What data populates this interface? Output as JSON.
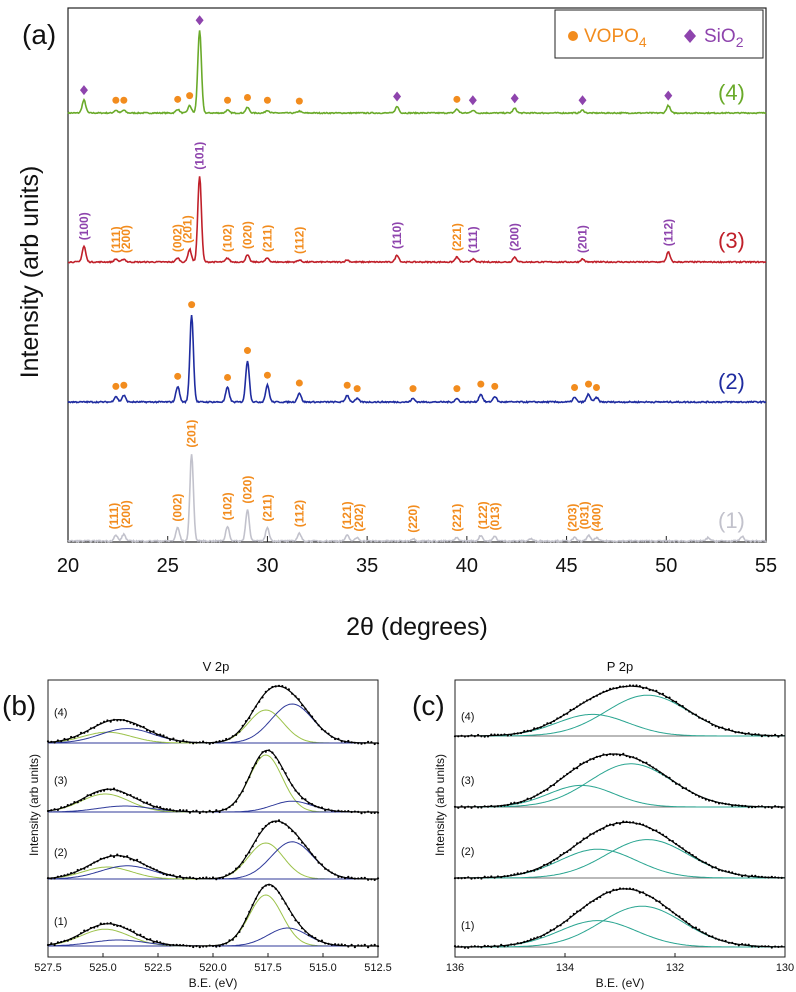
{
  "chart_data": [
    {
      "id": "a",
      "type": "line",
      "panel_label": "(a)",
      "xlabel": "2θ (degrees)",
      "ylabel": "Intensity (arb units)",
      "xlim": [
        20,
        55
      ],
      "xticks": [
        20,
        25,
        30,
        35,
        40,
        45,
        50,
        55
      ],
      "legend": [
        {
          "label": "VOPO",
          "sub": "4",
          "marker": "circle",
          "color": "#f28c1e"
        },
        {
          "label": "SiO",
          "sub": "2",
          "marker": "diamond",
          "color": "#8e44ad"
        }
      ],
      "series": [
        {
          "name": "(4)",
          "color": "#6aaa2a",
          "baseline_level": 0.0,
          "peaks": [
            [
              20.8,
              0.14
            ],
            [
              22.4,
              0.03
            ],
            [
              22.8,
              0.03
            ],
            [
              25.5,
              0.04
            ],
            [
              26.1,
              0.08
            ],
            [
              26.6,
              0.9
            ],
            [
              28.0,
              0.03
            ],
            [
              29.0,
              0.06
            ],
            [
              30.0,
              0.03
            ],
            [
              31.6,
              0.02
            ],
            [
              36.5,
              0.07
            ],
            [
              39.5,
              0.04
            ],
            [
              40.3,
              0.03
            ],
            [
              42.4,
              0.05
            ],
            [
              45.8,
              0.03
            ],
            [
              50.1,
              0.08
            ]
          ],
          "markers": [
            {
              "x": 20.8,
              "kind": "diamond"
            },
            {
              "x": 22.4,
              "kind": "circle"
            },
            {
              "x": 22.8,
              "kind": "circle"
            },
            {
              "x": 25.5,
              "kind": "circle"
            },
            {
              "x": 26.1,
              "kind": "circle"
            },
            {
              "x": 26.6,
              "kind": "diamond"
            },
            {
              "x": 28.0,
              "kind": "circle"
            },
            {
              "x": 29.0,
              "kind": "circle"
            },
            {
              "x": 30.0,
              "kind": "circle"
            },
            {
              "x": 31.6,
              "kind": "circle"
            },
            {
              "x": 36.5,
              "kind": "diamond"
            },
            {
              "x": 39.5,
              "kind": "circle"
            },
            {
              "x": 40.3,
              "kind": "diamond"
            },
            {
              "x": 42.4,
              "kind": "diamond"
            },
            {
              "x": 45.8,
              "kind": "diamond"
            },
            {
              "x": 50.1,
              "kind": "diamond"
            }
          ],
          "hkl": []
        },
        {
          "name": "(3)",
          "color": "#c0202a",
          "baseline_level": 0.0,
          "peaks": [
            [
              20.8,
              0.16
            ],
            [
              22.4,
              0.03
            ],
            [
              22.8,
              0.03
            ],
            [
              25.5,
              0.04
            ],
            [
              26.1,
              0.13
            ],
            [
              26.6,
              0.88
            ],
            [
              28.0,
              0.04
            ],
            [
              29.0,
              0.07
            ],
            [
              30.0,
              0.04
            ],
            [
              31.6,
              0.02
            ],
            [
              34.0,
              0.02
            ],
            [
              36.5,
              0.07
            ],
            [
              39.5,
              0.05
            ],
            [
              40.3,
              0.03
            ],
            [
              42.4,
              0.05
            ],
            [
              45.8,
              0.03
            ],
            [
              50.1,
              0.1
            ]
          ],
          "markers": [],
          "hkl": [
            {
              "x": 20.8,
              "text": "(100)",
              "color": "#8e44ad"
            },
            {
              "x": 22.4,
              "text": "(111)",
              "color": "#f28c1e"
            },
            {
              "x": 22.9,
              "text": "(200)",
              "color": "#f28c1e"
            },
            {
              "x": 25.5,
              "text": "(002)",
              "color": "#f28c1e"
            },
            {
              "x": 26.0,
              "text": "(201)",
              "color": "#f28c1e"
            },
            {
              "x": 26.6,
              "text": "(101)",
              "color": "#8e44ad"
            },
            {
              "x": 28.0,
              "text": "(102)",
              "color": "#f28c1e"
            },
            {
              "x": 29.0,
              "text": "(020)",
              "color": "#f28c1e"
            },
            {
              "x": 30.0,
              "text": "(211)",
              "color": "#f28c1e"
            },
            {
              "x": 31.6,
              "text": "(112)",
              "color": "#f28c1e"
            },
            {
              "x": 36.5,
              "text": "(110)",
              "color": "#8e44ad"
            },
            {
              "x": 39.5,
              "text": "(221)",
              "color": "#f28c1e"
            },
            {
              "x": 40.3,
              "text": "(111)",
              "color": "#8e44ad"
            },
            {
              "x": 42.4,
              "text": "(200)",
              "color": "#8e44ad"
            },
            {
              "x": 45.8,
              "text": "(201)",
              "color": "#8e44ad"
            },
            {
              "x": 50.1,
              "text": "(112)",
              "color": "#8e44ad"
            }
          ]
        },
        {
          "name": "(2)",
          "color": "#1f2ca0",
          "baseline_level": 0.0,
          "peaks": [
            [
              22.4,
              0.05
            ],
            [
              22.8,
              0.06
            ],
            [
              25.5,
              0.14
            ],
            [
              26.2,
              0.78
            ],
            [
              28.0,
              0.13
            ],
            [
              29.0,
              0.37
            ],
            [
              30.0,
              0.15
            ],
            [
              31.6,
              0.08
            ],
            [
              34.0,
              0.06
            ],
            [
              34.5,
              0.03
            ],
            [
              37.3,
              0.03
            ],
            [
              39.5,
              0.03
            ],
            [
              40.7,
              0.07
            ],
            [
              41.4,
              0.05
            ],
            [
              45.4,
              0.04
            ],
            [
              46.1,
              0.07
            ],
            [
              46.5,
              0.04
            ]
          ],
          "markers": [
            {
              "x": 22.4,
              "kind": "circle"
            },
            {
              "x": 22.8,
              "kind": "circle"
            },
            {
              "x": 25.5,
              "kind": "circle"
            },
            {
              "x": 26.2,
              "kind": "circle"
            },
            {
              "x": 28.0,
              "kind": "circle"
            },
            {
              "x": 29.0,
              "kind": "circle"
            },
            {
              "x": 30.0,
              "kind": "circle"
            },
            {
              "x": 31.6,
              "kind": "circle"
            },
            {
              "x": 34.0,
              "kind": "circle"
            },
            {
              "x": 34.5,
              "kind": "circle"
            },
            {
              "x": 37.3,
              "kind": "circle"
            },
            {
              "x": 39.5,
              "kind": "circle"
            },
            {
              "x": 40.7,
              "kind": "circle"
            },
            {
              "x": 41.4,
              "kind": "circle"
            },
            {
              "x": 45.4,
              "kind": "circle"
            },
            {
              "x": 46.1,
              "kind": "circle"
            },
            {
              "x": 46.5,
              "kind": "circle"
            }
          ],
          "hkl": []
        },
        {
          "name": "(1)",
          "color": "#c2c2cc",
          "baseline_level": 0.0,
          "peaks": [
            [
              22.4,
              0.05
            ],
            [
              22.8,
              0.06
            ],
            [
              25.5,
              0.12
            ],
            [
              26.2,
              0.78
            ],
            [
              28.0,
              0.13
            ],
            [
              29.0,
              0.28
            ],
            [
              30.0,
              0.12
            ],
            [
              31.6,
              0.07
            ],
            [
              34.0,
              0.05
            ],
            [
              34.5,
              0.03
            ],
            [
              37.3,
              0.02
            ],
            [
              39.5,
              0.03
            ],
            [
              40.7,
              0.05
            ],
            [
              41.4,
              0.04
            ],
            [
              43.2,
              0.02
            ],
            [
              45.4,
              0.03
            ],
            [
              46.1,
              0.05
            ],
            [
              46.5,
              0.03
            ],
            [
              52.1,
              0.03
            ],
            [
              53.8,
              0.04
            ]
          ],
          "markers": [],
          "hkl": [
            {
              "x": 22.3,
              "text": "(111)",
              "color": "#f28c1e"
            },
            {
              "x": 22.9,
              "text": "(200)",
              "color": "#f28c1e"
            },
            {
              "x": 25.5,
              "text": "(002)",
              "color": "#f28c1e"
            },
            {
              "x": 26.2,
              "text": "(201)",
              "color": "#f28c1e"
            },
            {
              "x": 28.0,
              "text": "(102)",
              "color": "#f28c1e"
            },
            {
              "x": 29.0,
              "text": "(020)",
              "color": "#f28c1e"
            },
            {
              "x": 30.0,
              "text": "(211)",
              "color": "#f28c1e"
            },
            {
              "x": 31.6,
              "text": "(112)",
              "color": "#f28c1e"
            },
            {
              "x": 34.0,
              "text": "(121)",
              "color": "#f28c1e"
            },
            {
              "x": 34.6,
              "text": "(202)",
              "color": "#f28c1e"
            },
            {
              "x": 37.3,
              "text": "(220)",
              "color": "#f28c1e"
            },
            {
              "x": 39.5,
              "text": "(221)",
              "color": "#f28c1e"
            },
            {
              "x": 40.8,
              "text": "(122)",
              "color": "#f28c1e"
            },
            {
              "x": 41.4,
              "text": "(013)",
              "color": "#f28c1e"
            },
            {
              "x": 45.3,
              "text": "(203)",
              "color": "#f28c1e"
            },
            {
              "x": 45.9,
              "text": "(031)",
              "color": "#f28c1e"
            },
            {
              "x": 46.5,
              "text": "(400)",
              "color": "#f28c1e"
            }
          ]
        }
      ]
    },
    {
      "id": "b",
      "type": "line",
      "panel_label": "(b)",
      "title": "V 2p",
      "xlabel": "B.E. (eV)",
      "ylabel": "Intensity (arb units)",
      "xlim": [
        527.5,
        512.5
      ],
      "xticks": [
        "527.5",
        "525.0",
        "522.5",
        "520.0",
        "517.5",
        "515.0",
        "512.5"
      ],
      "component_colors": {
        "data": "#000000",
        "envelope": "#000000",
        "green": "#9cc24a",
        "blue": "#2f3a9a",
        "background": "#666666"
      },
      "series": [
        {
          "name": "(4)",
          "components": [
            {
              "color": "green",
              "center": 517.6,
              "width": 0.8,
              "height": 0.55
            },
            {
              "color": "blue",
              "center": 516.4,
              "width": 0.95,
              "height": 0.65
            },
            {
              "color": "green",
              "center": 524.8,
              "width": 1.1,
              "height": 0.18
            },
            {
              "color": "blue",
              "center": 523.9,
              "width": 1.2,
              "height": 0.24
            }
          ]
        },
        {
          "name": "(3)",
          "components": [
            {
              "color": "green",
              "center": 517.6,
              "width": 0.75,
              "height": 0.95
            },
            {
              "color": "blue",
              "center": 516.4,
              "width": 0.9,
              "height": 0.18
            },
            {
              "color": "green",
              "center": 524.9,
              "width": 1.1,
              "height": 0.3
            },
            {
              "color": "blue",
              "center": 524.0,
              "width": 1.2,
              "height": 0.1
            }
          ]
        },
        {
          "name": "(2)",
          "components": [
            {
              "color": "green",
              "center": 517.6,
              "width": 0.8,
              "height": 0.6
            },
            {
              "color": "blue",
              "center": 516.4,
              "width": 0.95,
              "height": 0.62
            },
            {
              "color": "green",
              "center": 524.8,
              "width": 1.1,
              "height": 0.2
            },
            {
              "color": "blue",
              "center": 523.9,
              "width": 1.2,
              "height": 0.22
            }
          ]
        },
        {
          "name": "(1)",
          "components": [
            {
              "color": "green",
              "center": 517.6,
              "width": 0.75,
              "height": 0.85
            },
            {
              "color": "blue",
              "center": 516.6,
              "width": 0.9,
              "height": 0.3
            },
            {
              "color": "green",
              "center": 524.9,
              "width": 1.1,
              "height": 0.28
            },
            {
              "color": "blue",
              "center": 524.3,
              "width": 1.2,
              "height": 0.1
            }
          ]
        }
      ]
    },
    {
      "id": "c",
      "type": "line",
      "panel_label": "(c)",
      "title": "P 2p",
      "xlabel": "B.E. (eV)",
      "ylabel": "Intensity (arb units)",
      "xlim": [
        136,
        130
      ],
      "xticks": [
        "136",
        "134",
        "132",
        "130"
      ],
      "component_colors": {
        "data": "#000000",
        "envelope": "#000000",
        "teal": "#2aa591",
        "background": "#666666"
      },
      "series": [
        {
          "name": "(4)",
          "components": [
            {
              "color": "teal",
              "center": 133.5,
              "width": 0.65,
              "height": 0.45
            },
            {
              "color": "teal",
              "center": 132.5,
              "width": 0.75,
              "height": 0.85
            }
          ]
        },
        {
          "name": "(3)",
          "components": [
            {
              "color": "teal",
              "center": 133.7,
              "width": 0.6,
              "height": 0.45
            },
            {
              "color": "teal",
              "center": 132.8,
              "width": 0.75,
              "height": 0.9
            }
          ]
        },
        {
          "name": "(2)",
          "components": [
            {
              "color": "teal",
              "center": 133.4,
              "width": 0.7,
              "height": 0.6
            },
            {
              "color": "teal",
              "center": 132.5,
              "width": 0.75,
              "height": 0.8
            }
          ]
        },
        {
          "name": "(1)",
          "components": [
            {
              "color": "teal",
              "center": 133.4,
              "width": 0.7,
              "height": 0.55
            },
            {
              "color": "teal",
              "center": 132.6,
              "width": 0.75,
              "height": 0.85
            }
          ]
        }
      ]
    }
  ]
}
